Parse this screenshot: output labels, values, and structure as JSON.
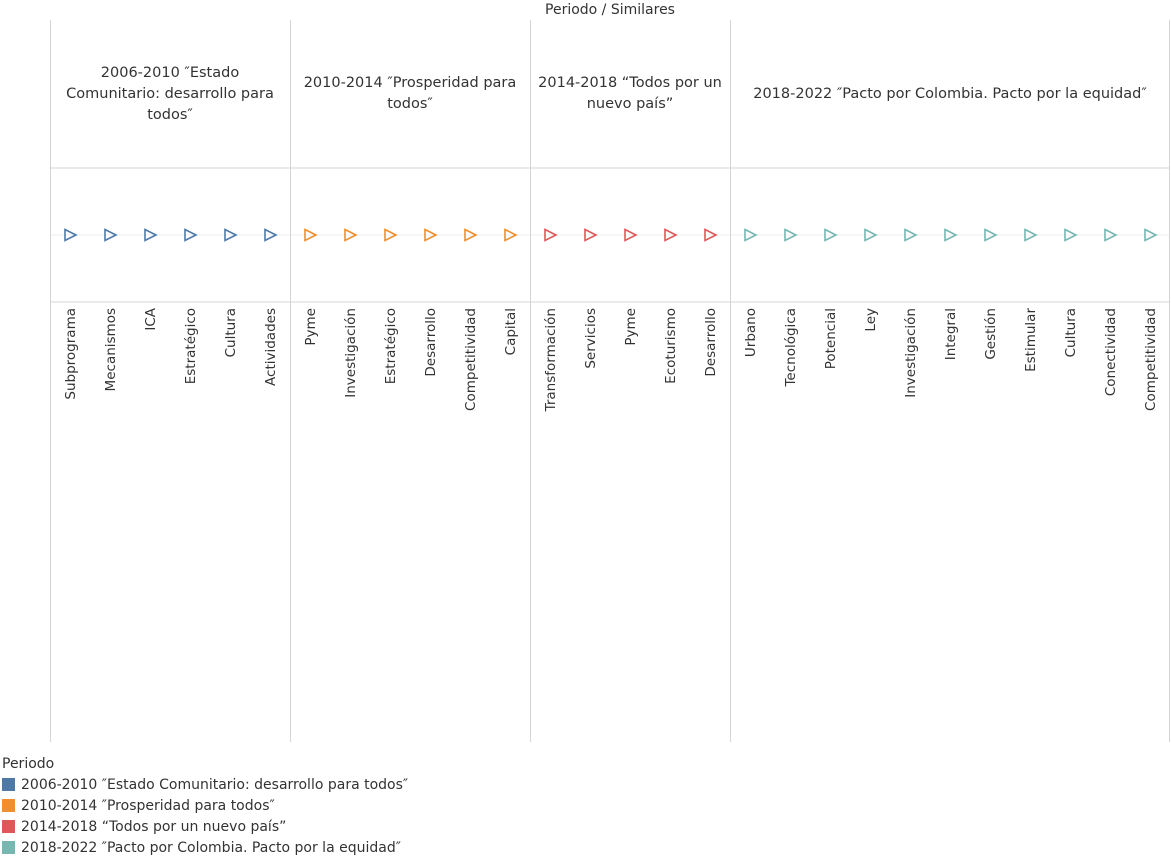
{
  "chart_data": {
    "type": "scatter",
    "title": "Periodo / Similares",
    "marker": "triangle-right-outline",
    "legend": {
      "title": "Periodo",
      "placement": "bottom-left"
    },
    "panels": [
      {
        "period": "2006-2010 ″Estado Comunitario: desarrollo para todos″",
        "color": "#4e79a7",
        "categories": [
          "Subprograma",
          "Mecanismos",
          "ICA",
          "Estratégico",
          "Cultura",
          "Actividades"
        ]
      },
      {
        "period": "2010-2014 ″Prosperidad para todos″",
        "color": "#f28e2b",
        "categories": [
          "Pyme",
          "Investigación",
          "Estratégico",
          "Desarrollo",
          "Competitividad",
          "Capital"
        ]
      },
      {
        "period": "2014-2018 “Todos por un nuevo país”",
        "color": "#e15759",
        "categories": [
          "Transformación",
          "Servicios",
          "Pyme",
          "Ecoturismo",
          "Desarrollo"
        ]
      },
      {
        "period": "2018-2022 ″Pacto por Colombia. Pacto por la equidad″",
        "color": "#76b7b2",
        "categories": [
          "Urbano",
          "Tecnológica",
          "Potencial",
          "Ley",
          "Investigación",
          "Integral",
          "Gestión",
          "Estimular",
          "Cultura",
          "Conectividad",
          "Competitividad"
        ]
      }
    ]
  }
}
